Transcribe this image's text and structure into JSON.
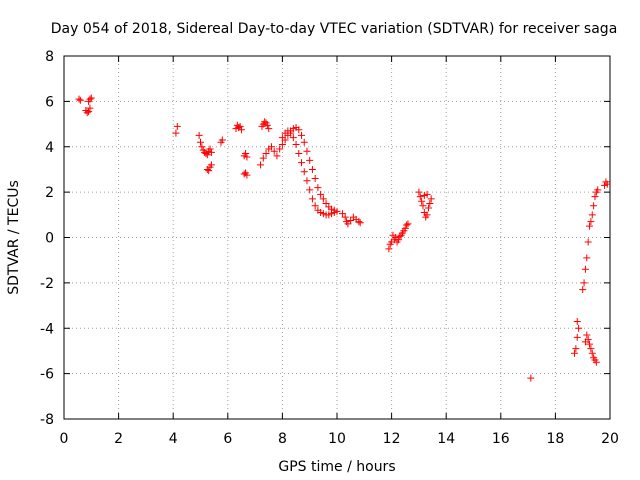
{
  "chart_data": {
    "type": "scatter",
    "title": "Day 054 of 2018, Sidereal Day-to-day VTEC variation (SDTVAR) for receiver saga",
    "xlabel": "GPS time / hours",
    "ylabel": "SDTVAR / TECUs",
    "xlim": [
      0,
      20
    ],
    "ylim": [
      -8,
      8
    ],
    "xticks": [
      0,
      2,
      4,
      6,
      8,
      10,
      12,
      14,
      16,
      18,
      20
    ],
    "yticks": [
      -8,
      -6,
      -4,
      -2,
      0,
      2,
      4,
      6,
      8
    ],
    "xtick_labels": [
      "0",
      "2",
      "4",
      "6",
      "8",
      "10",
      "12",
      "14",
      "16",
      "18",
      "20"
    ],
    "ytick_labels": [
      "-8",
      "-6",
      "-4",
      "-2",
      "0",
      "2",
      "4",
      "6",
      "8"
    ],
    "grid": true,
    "marker": "+",
    "series": [
      {
        "name": "SDTVAR",
        "color": "#ff0000",
        "points": [
          [
            0.55,
            6.1
          ],
          [
            0.6,
            6.05
          ],
          [
            0.8,
            5.6
          ],
          [
            0.85,
            5.5
          ],
          [
            0.9,
            5.55
          ],
          [
            0.95,
            5.7
          ],
          [
            0.9,
            6.0
          ],
          [
            0.95,
            6.1
          ],
          [
            1.0,
            6.15
          ],
          [
            4.1,
            4.6
          ],
          [
            4.15,
            4.9
          ],
          [
            4.95,
            4.5
          ],
          [
            5.0,
            4.2
          ],
          [
            5.05,
            4.0
          ],
          [
            5.1,
            3.85
          ],
          [
            5.15,
            3.75
          ],
          [
            5.2,
            3.7
          ],
          [
            5.25,
            3.65
          ],
          [
            5.3,
            3.8
          ],
          [
            5.35,
            3.9
          ],
          [
            5.4,
            3.75
          ],
          [
            5.25,
            3.0
          ],
          [
            5.3,
            2.95
          ],
          [
            5.35,
            3.1
          ],
          [
            5.4,
            3.2
          ],
          [
            5.75,
            4.2
          ],
          [
            5.8,
            4.3
          ],
          [
            6.3,
            4.8
          ],
          [
            6.35,
            4.95
          ],
          [
            6.4,
            4.85
          ],
          [
            6.45,
            4.9
          ],
          [
            6.5,
            4.75
          ],
          [
            6.6,
            3.6
          ],
          [
            6.65,
            3.7
          ],
          [
            6.7,
            3.55
          ],
          [
            6.6,
            2.8
          ],
          [
            6.65,
            2.85
          ],
          [
            6.7,
            2.75
          ],
          [
            7.25,
            4.9
          ],
          [
            7.3,
            5.0
          ],
          [
            7.35,
            5.1
          ],
          [
            7.4,
            5.05
          ],
          [
            7.45,
            4.95
          ],
          [
            7.5,
            4.8
          ],
          [
            7.2,
            3.2
          ],
          [
            7.3,
            3.5
          ],
          [
            7.4,
            3.7
          ],
          [
            7.5,
            3.9
          ],
          [
            7.6,
            4.0
          ],
          [
            7.7,
            3.8
          ],
          [
            7.8,
            3.6
          ],
          [
            7.9,
            3.9
          ],
          [
            8.0,
            4.1
          ],
          [
            8.1,
            4.3
          ],
          [
            8.2,
            4.5
          ],
          [
            8.3,
            4.7
          ],
          [
            8.4,
            4.8
          ],
          [
            8.5,
            4.85
          ],
          [
            8.6,
            4.75
          ],
          [
            8.7,
            4.5
          ],
          [
            8.8,
            4.2
          ],
          [
            8.9,
            3.8
          ],
          [
            9.0,
            3.4
          ],
          [
            9.1,
            3.0
          ],
          [
            9.2,
            2.6
          ],
          [
            9.3,
            2.2
          ],
          [
            9.4,
            1.9
          ],
          [
            9.5,
            1.7
          ],
          [
            9.6,
            1.5
          ],
          [
            9.7,
            1.35
          ],
          [
            9.8,
            1.25
          ],
          [
            9.9,
            1.2
          ],
          [
            10.0,
            1.15
          ],
          [
            8.0,
            4.4
          ],
          [
            8.1,
            4.6
          ],
          [
            8.2,
            4.7
          ],
          [
            8.3,
            4.6
          ],
          [
            8.4,
            4.4
          ],
          [
            8.5,
            4.1
          ],
          [
            8.6,
            3.7
          ],
          [
            8.7,
            3.3
          ],
          [
            8.8,
            2.9
          ],
          [
            8.9,
            2.5
          ],
          [
            9.0,
            2.1
          ],
          [
            9.1,
            1.7
          ],
          [
            9.2,
            1.4
          ],
          [
            9.3,
            1.2
          ],
          [
            9.4,
            1.1
          ],
          [
            9.5,
            1.05
          ],
          [
            9.6,
            1.0
          ],
          [
            9.7,
            1.0
          ],
          [
            9.8,
            1.05
          ],
          [
            9.9,
            1.1
          ],
          [
            10.2,
            1.05
          ],
          [
            10.3,
            0.9
          ],
          [
            10.35,
            0.7
          ],
          [
            10.4,
            0.6
          ],
          [
            10.5,
            0.75
          ],
          [
            10.6,
            0.9
          ],
          [
            10.7,
            0.8
          ],
          [
            10.8,
            0.7
          ],
          [
            10.85,
            0.65
          ],
          [
            11.9,
            -0.5
          ],
          [
            11.95,
            -0.3
          ],
          [
            12.0,
            -0.2
          ],
          [
            12.05,
            0.1
          ],
          [
            12.1,
            -0.1
          ],
          [
            12.15,
            0.0
          ],
          [
            12.2,
            -0.2
          ],
          [
            12.25,
            -0.1
          ],
          [
            12.3,
            0.05
          ],
          [
            12.35,
            0.1
          ],
          [
            12.4,
            0.2
          ],
          [
            12.45,
            0.3
          ],
          [
            12.5,
            0.4
          ],
          [
            12.55,
            0.55
          ],
          [
            12.6,
            0.6
          ],
          [
            13.0,
            2.0
          ],
          [
            13.05,
            1.8
          ],
          [
            13.1,
            1.6
          ],
          [
            13.15,
            1.4
          ],
          [
            13.2,
            1.1
          ],
          [
            13.25,
            0.9
          ],
          [
            13.3,
            1.0
          ],
          [
            13.35,
            1.3
          ],
          [
            13.4,
            1.5
          ],
          [
            13.45,
            1.7
          ],
          [
            13.3,
            1.9
          ],
          [
            13.2,
            1.85
          ],
          [
            17.1,
            -6.2
          ],
          [
            18.7,
            -5.1
          ],
          [
            18.75,
            -4.9
          ],
          [
            18.8,
            -4.4
          ],
          [
            18.85,
            -4.0
          ],
          [
            18.8,
            -3.7
          ],
          [
            19.1,
            -4.6
          ],
          [
            19.15,
            -4.3
          ],
          [
            19.2,
            -4.5
          ],
          [
            19.25,
            -4.7
          ],
          [
            19.3,
            -4.9
          ],
          [
            19.35,
            -5.1
          ],
          [
            19.4,
            -5.3
          ],
          [
            19.45,
            -5.4
          ],
          [
            19.5,
            -5.5
          ],
          [
            19.0,
            -2.3
          ],
          [
            19.05,
            -2.0
          ],
          [
            19.1,
            -1.4
          ],
          [
            19.15,
            -0.9
          ],
          [
            19.2,
            -0.2
          ],
          [
            19.25,
            0.5
          ],
          [
            19.3,
            0.7
          ],
          [
            19.35,
            1.0
          ],
          [
            19.4,
            1.4
          ],
          [
            19.45,
            1.8
          ],
          [
            19.5,
            2.0
          ],
          [
            19.55,
            2.1
          ],
          [
            19.8,
            2.3
          ],
          [
            19.85,
            2.45
          ],
          [
            19.9,
            2.35
          ]
        ]
      }
    ]
  }
}
